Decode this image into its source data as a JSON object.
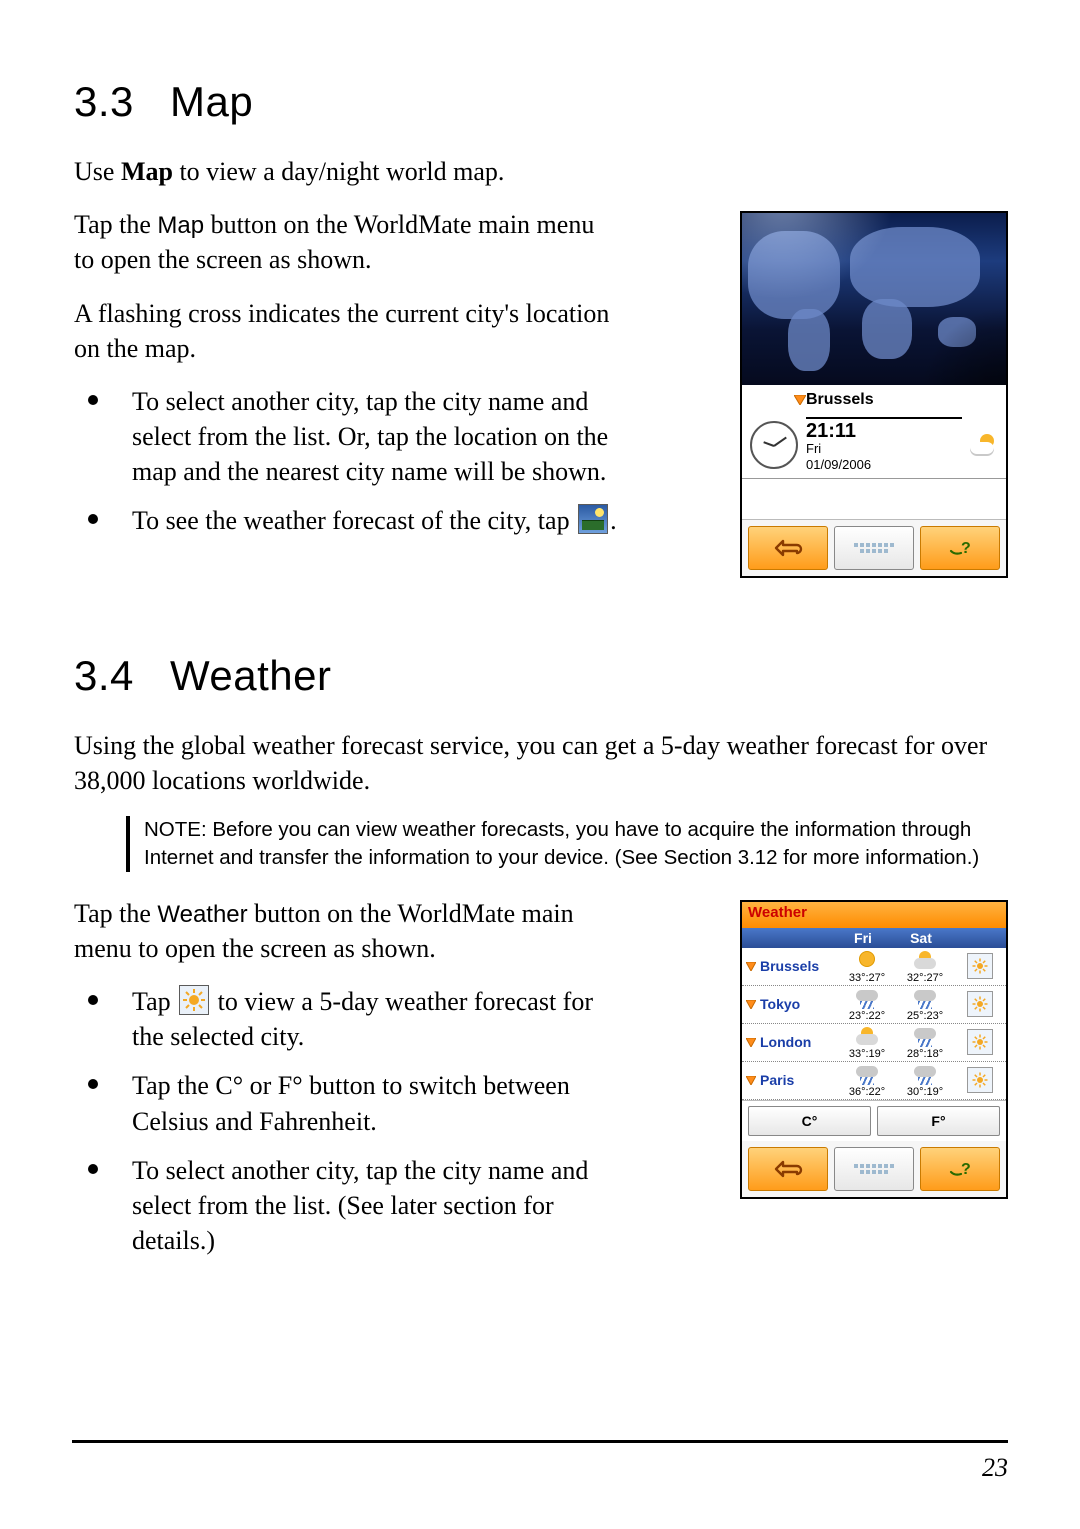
{
  "section_map": {
    "num": "3.3",
    "title": "Map",
    "p1_pre": "Use ",
    "p1_bold": "Map",
    "p1_post": " to view a day/night world map.",
    "p2_pre": "Tap the ",
    "p2_sans": "Map",
    "p2_post": " button on the WorldMate main menu to open the screen as shown.",
    "p3": "A flashing cross indicates the current city's location on the map.",
    "b1": "To select another city, tap the city name and select from the list. Or, tap the location on the map and the nearest city name will be shown.",
    "b2_pre": "To see the weather forecast of the city, tap ",
    "b2_post": "."
  },
  "map_shot": {
    "city": "Brussels",
    "time": "21:11",
    "day": "Fri",
    "date": "01/09/2006"
  },
  "section_weather": {
    "num": "3.4",
    "title": "Weather",
    "p1": "Using the global weather forecast service, you can get a 5-day weather forecast for over 38,000 locations worldwide.",
    "note": "NOTE: Before you can view weather forecasts, you have to acquire the information through Internet and transfer the information to your device. (See Section 3.12 for more information.)",
    "p2_pre": "Tap the ",
    "p2_sans": "Weather",
    "p2_post": " button on the WorldMate main menu to open the screen as shown.",
    "b1_pre": "Tap ",
    "b1_post": " to view a 5-day weather forecast for the selected city.",
    "b2_pre": "Tap the ",
    "b2_c": "C°",
    "b2_mid": " or ",
    "b2_f": "F°",
    "b2_post": " button to switch between Celsius and Fahrenheit.",
    "b3": "To select another city, tap the city name and select from the list. (See later section for details.)"
  },
  "weather_shot": {
    "header": "Weather",
    "days": [
      "Fri",
      "Sat"
    ],
    "rows": [
      {
        "city": "Brussels",
        "d1": {
          "ic": "sun",
          "t": "33°:27°"
        },
        "d2": {
          "ic": "cloud",
          "t": "32°:27°"
        }
      },
      {
        "city": "Tokyo",
        "d1": {
          "ic": "rain",
          "t": "23°:22°"
        },
        "d2": {
          "ic": "rain",
          "t": "25°:23°"
        }
      },
      {
        "city": "London",
        "d1": {
          "ic": "cloud",
          "t": "33°:19°"
        },
        "d2": {
          "ic": "rain",
          "t": "28°:18°"
        }
      },
      {
        "city": "Paris",
        "d1": {
          "ic": "rain",
          "t": "36°:22°"
        },
        "d2": {
          "ic": "rain",
          "t": "30°:19°"
        }
      }
    ],
    "c_btn": "C°",
    "f_btn": "F°"
  },
  "page_number": "23"
}
